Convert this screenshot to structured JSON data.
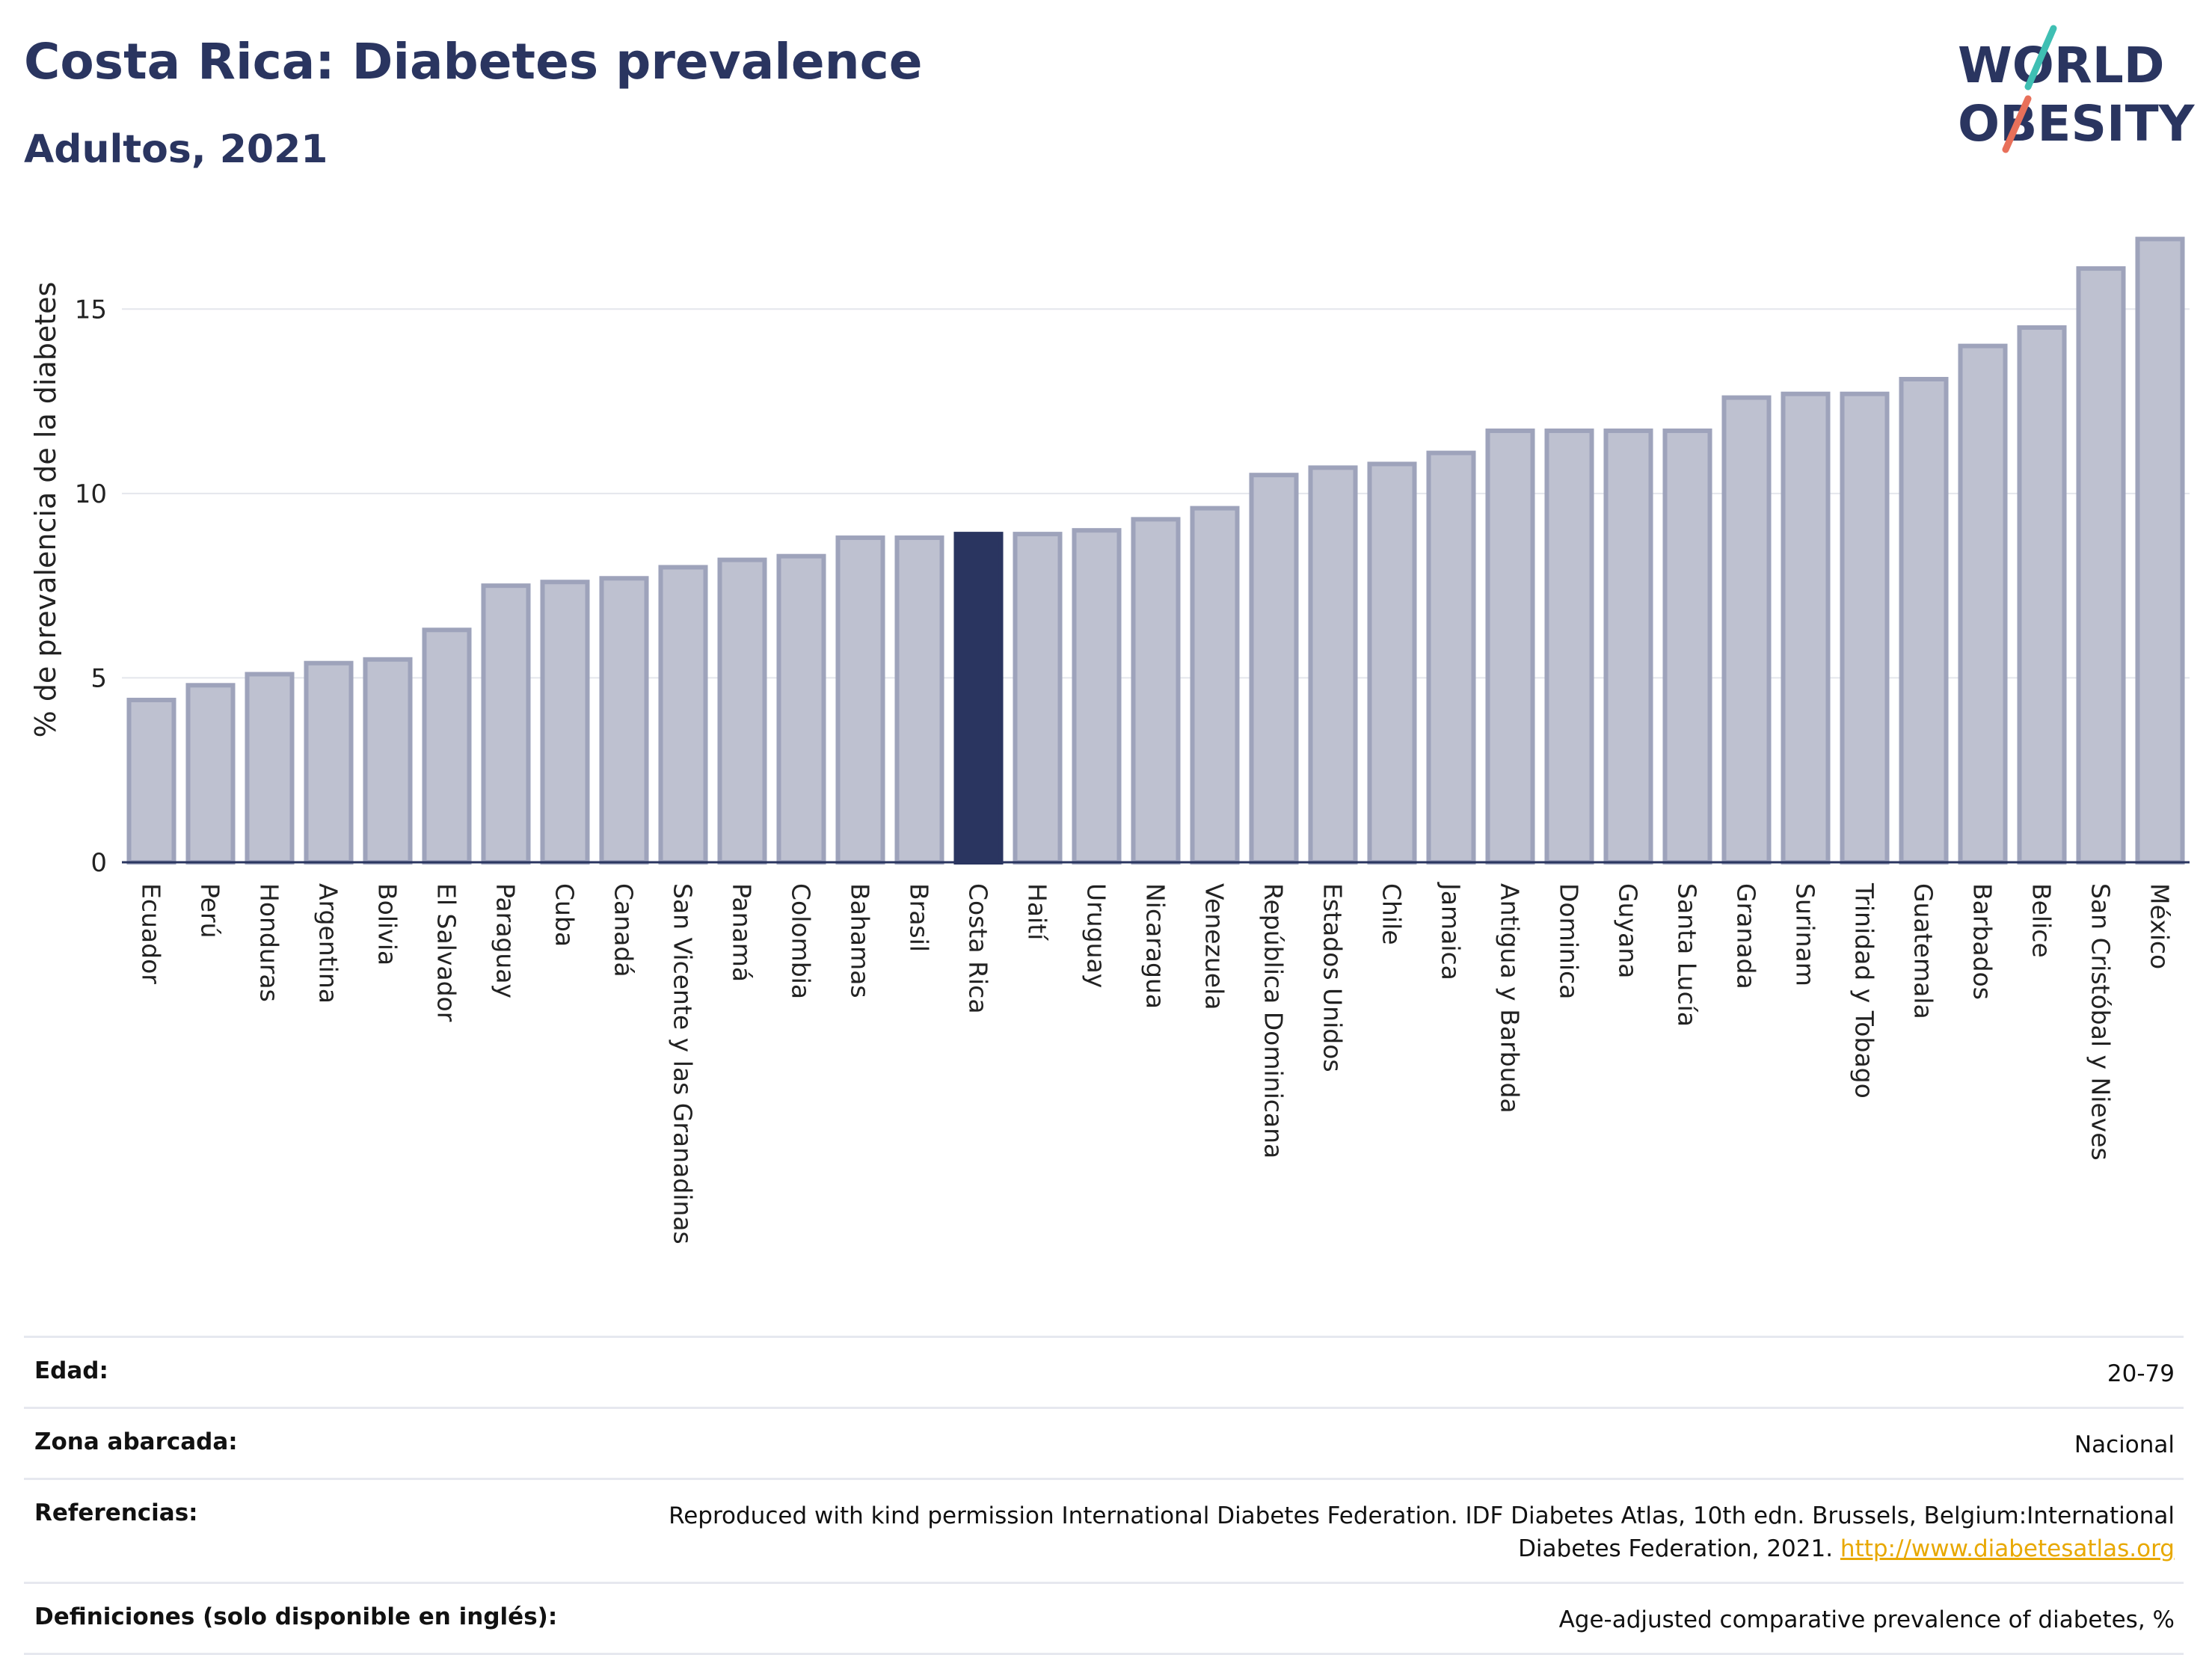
{
  "header": {
    "title": "Costa Rica: Diabetes prevalence",
    "subtitle": "Adultos, 2021",
    "logo_line1": "WORLD",
    "logo_line2": "OBESITY"
  },
  "colors": {
    "bar_default": "#bec1d0",
    "bar_border": "#9ea3bb",
    "bar_highlight": "#2a3560",
    "title": "#2a3560",
    "link": "#e8a800",
    "logo_teal": "#3fbfb3",
    "logo_coral": "#e8705a"
  },
  "chart_data": {
    "type": "bar",
    "ylabel": "% de prevalencia de la diabetes",
    "xlabel": "",
    "ylim": [
      0,
      17.5
    ],
    "yticks": [
      0,
      5,
      10,
      15
    ],
    "grid": true,
    "highlight": "Costa Rica",
    "categories": [
      "Ecuador",
      "Perú",
      "Honduras",
      "Argentina",
      "Bolivia",
      "El Salvador",
      "Paraguay",
      "Cuba",
      "Canadá",
      "San Vicente y las Granadinas",
      "Panamá",
      "Colombia",
      "Bahamas",
      "Brasil",
      "Costa Rica",
      "Haití",
      "Uruguay",
      "Nicaragua",
      "Venezuela",
      "República Dominicana",
      "Estados Unidos",
      "Chile",
      "Jamaica",
      "Antigua y Barbuda",
      "Dominica",
      "Guyana",
      "Santa Lucía",
      "Granada",
      "Surinam",
      "Trinidad y Tobago",
      "Guatemala",
      "Barbados",
      "Belice",
      "San Cristóbal y Nieves",
      "México"
    ],
    "values": [
      4.4,
      4.8,
      5.1,
      5.4,
      5.5,
      6.3,
      7.5,
      7.6,
      7.7,
      8.0,
      8.2,
      8.3,
      8.8,
      8.8,
      8.9,
      8.9,
      9.0,
      9.3,
      9.6,
      10.5,
      10.7,
      10.8,
      11.1,
      11.7,
      11.7,
      11.7,
      11.7,
      12.6,
      12.7,
      12.7,
      13.1,
      14.0,
      14.5,
      16.1,
      16.9
    ]
  },
  "meta": {
    "age_label": "Edad:",
    "age_value": "20-79",
    "zone_label": "Zona abarcada:",
    "zone_value": "Nacional",
    "refs_label": "Referencias:",
    "refs_value": "Reproduced with kind permission International Diabetes Federation.  IDF Diabetes Atlas, 10th edn. Brussels, Belgium:International Diabetes Federation, 2021. ",
    "refs_link": "http://www.diabetesatlas.org",
    "defs_label": "Definiciones (solo disponible en inglés):",
    "defs_value": "Age-adjusted comparative prevalence of diabetes, %"
  }
}
